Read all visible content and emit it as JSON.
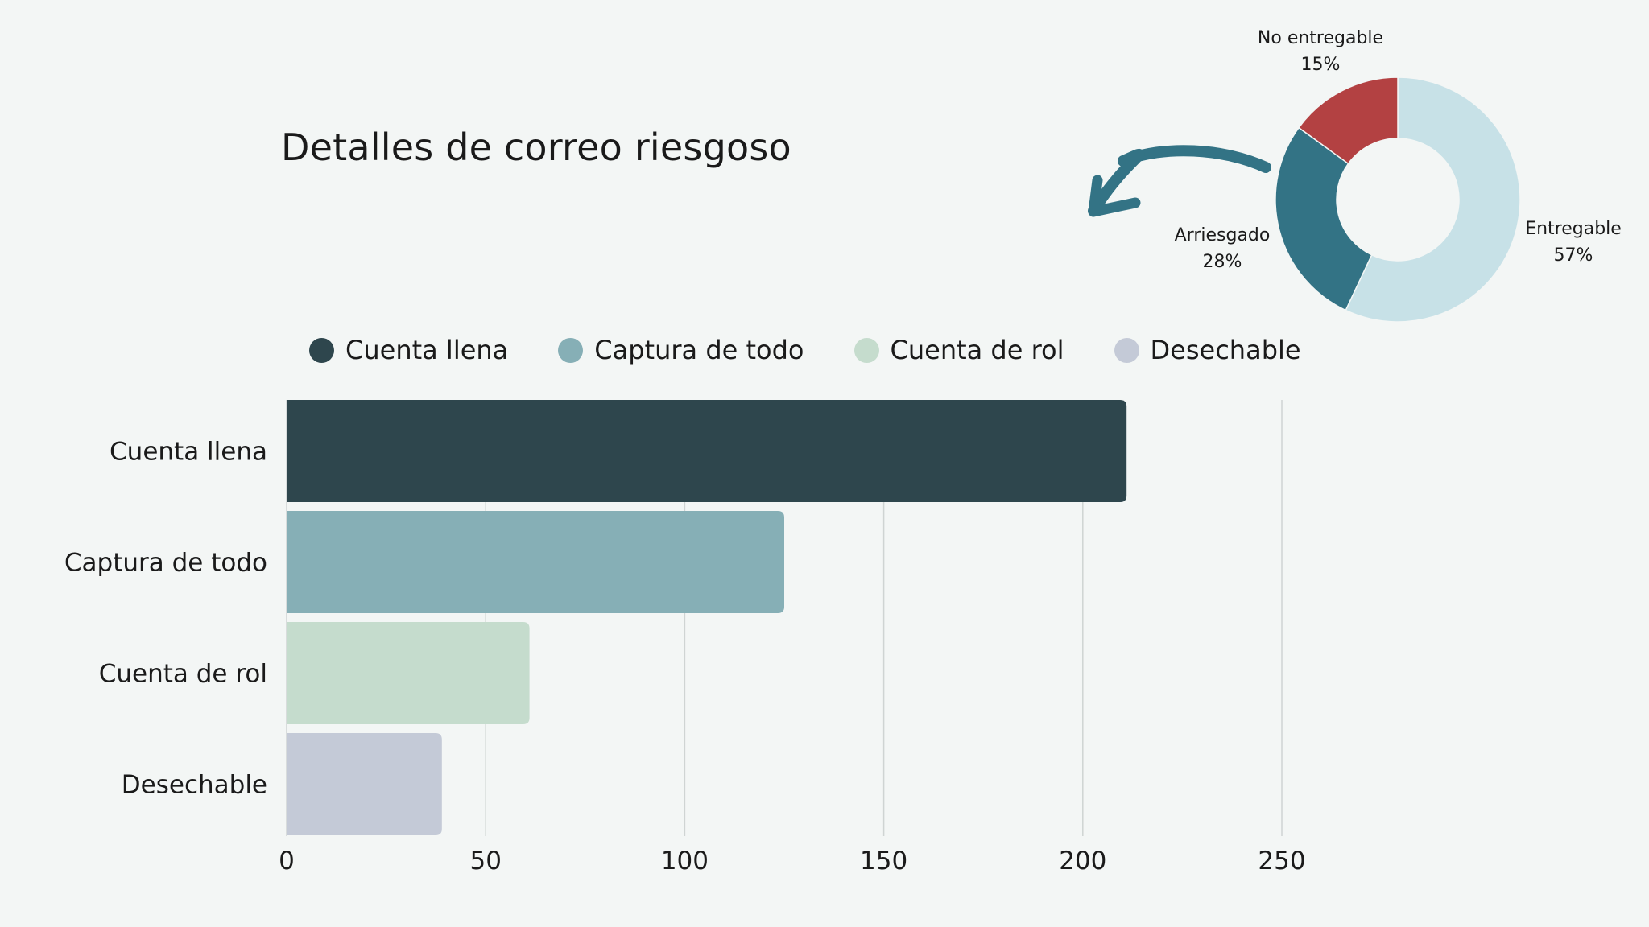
{
  "title": "Detalles de correo riesgoso",
  "colors": {
    "cuenta_llena": "#2e464d",
    "captura_de_todo": "#86afb6",
    "cuenta_de_rol": "#c5dccd",
    "desechable": "#c4cad7",
    "entregable": "#c7e1e7",
    "arriesgado": "#337385",
    "no_entregable": "#b34142",
    "arrow": "#337385",
    "grid": "#cfd4d3"
  },
  "chart_data": [
    {
      "type": "bar",
      "orientation": "horizontal",
      "categories": [
        "Cuenta llena",
        "Captura de todo",
        "Cuenta de rol",
        "Desechable"
      ],
      "values": [
        211,
        125,
        61,
        39
      ],
      "xticks": [
        "0",
        "50",
        "100",
        "150",
        "200",
        "250"
      ],
      "xlim": [
        0,
        250
      ],
      "grid": true,
      "legend": {
        "placement": "top",
        "entries": [
          "Cuenta llena",
          "Captura de todo",
          "Cuenta de rol",
          "Desechable"
        ]
      }
    },
    {
      "type": "pie",
      "style": "donut",
      "slices": [
        {
          "name": "Entregable",
          "label": "57%",
          "value": 57
        },
        {
          "name": "Arriesgado",
          "label": "28%",
          "value": 28
        },
        {
          "name": "No entregable",
          "label": "15%",
          "value": 15
        }
      ]
    }
  ]
}
